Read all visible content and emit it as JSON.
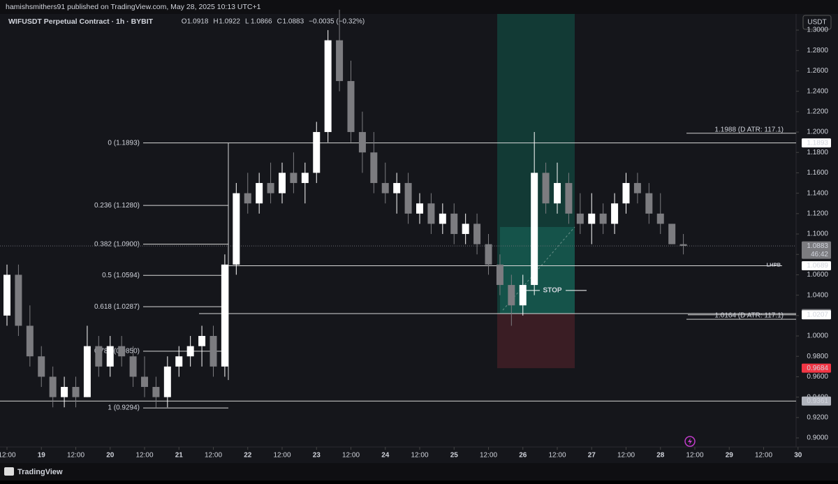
{
  "header": "hamishsmithers91 published on TradingView.com, May 28, 2025 10:13 UTC+1",
  "footer": "TradingView",
  "currency_button": "USDT",
  "chart_data": {
    "type": "candlestick",
    "title": "WIFUSDT Perpetual Contract · 1h · BYBIT",
    "ohlc_labels": [
      "O",
      "H",
      "L",
      "C"
    ],
    "ohlc_values": [
      1.0918,
      1.0922,
      1.0866,
      1.0883
    ],
    "change": "−0.0035 (−0.32%)",
    "up_color": "#ffffff",
    "down_color": "#7c7c80",
    "open": [
      1.02,
      1.06,
      1.01,
      0.98,
      0.96,
      0.94,
      0.95,
      0.94,
      0.99,
      0.97,
      0.99,
      0.98,
      0.96,
      0.95,
      0.94,
      0.97,
      0.98,
      0.99,
      1.0,
      0.97,
      1.07,
      1.14,
      1.13,
      1.15,
      1.14,
      1.16,
      1.15,
      1.16,
      1.2,
      1.29,
      1.25,
      1.2,
      1.18,
      1.15,
      1.14,
      1.15,
      1.12,
      1.13,
      1.11,
      1.12,
      1.1,
      1.11,
      1.09,
      1.07,
      1.05,
      1.03,
      1.05,
      1.16,
      1.13,
      1.15,
      1.12,
      1.11,
      1.12,
      1.11,
      1.13,
      1.15,
      1.14,
      1.12,
      1.11,
      1.09
    ],
    "high": [
      1.07,
      1.07,
      1.03,
      0.99,
      0.97,
      0.96,
      0.96,
      1.01,
      1.0,
      1.0,
      1.0,
      0.99,
      0.98,
      0.96,
      0.98,
      0.99,
      1.0,
      1.01,
      1.01,
      1.08,
      1.15,
      1.16,
      1.16,
      1.17,
      1.17,
      1.18,
      1.17,
      1.21,
      1.3,
      1.32,
      1.27,
      1.22,
      1.2,
      1.17,
      1.16,
      1.16,
      1.14,
      1.14,
      1.13,
      1.13,
      1.12,
      1.12,
      1.1,
      1.08,
      1.06,
      1.06,
      1.2,
      1.17,
      1.17,
      1.16,
      1.14,
      1.14,
      1.13,
      1.14,
      1.16,
      1.16,
      1.15,
      1.14,
      1.11,
      1.1
    ],
    "low": [
      1.01,
      1.0,
      0.97,
      0.95,
      0.93,
      0.93,
      0.93,
      0.94,
      0.96,
      0.96,
      0.97,
      0.95,
      0.94,
      0.93,
      0.93,
      0.96,
      0.97,
      0.97,
      0.96,
      0.96,
      1.06,
      1.12,
      1.12,
      1.13,
      1.13,
      1.14,
      1.13,
      1.15,
      1.19,
      1.24,
      1.19,
      1.16,
      1.14,
      1.13,
      1.12,
      1.11,
      1.11,
      1.1,
      1.1,
      1.09,
      1.09,
      1.08,
      1.06,
      1.04,
      1.01,
      1.02,
      1.04,
      1.12,
      1.12,
      1.11,
      1.1,
      1.09,
      1.1,
      1.1,
      1.12,
      1.13,
      1.11,
      1.1,
      1.09,
      1.08
    ],
    "close": [
      1.06,
      1.01,
      0.98,
      0.96,
      0.94,
      0.95,
      0.94,
      0.99,
      0.97,
      0.99,
      0.98,
      0.96,
      0.95,
      0.94,
      0.97,
      0.98,
      0.99,
      1.0,
      0.97,
      1.07,
      1.14,
      1.13,
      1.15,
      1.14,
      1.16,
      1.15,
      1.16,
      1.2,
      1.29,
      1.25,
      1.2,
      1.18,
      1.15,
      1.14,
      1.15,
      1.12,
      1.13,
      1.11,
      1.12,
      1.1,
      1.11,
      1.09,
      1.07,
      1.05,
      1.03,
      1.05,
      1.16,
      1.13,
      1.15,
      1.12,
      1.11,
      1.12,
      1.11,
      1.13,
      1.15,
      1.14,
      1.12,
      1.11,
      1.09,
      1.0883
    ],
    "xticks": [
      "12:00",
      "19",
      "12:00",
      "20",
      "12:00",
      "21",
      "12:00",
      "22",
      "12:00",
      "23",
      "12:00",
      "24",
      "12:00",
      "25",
      "12:00",
      "26",
      "12:00",
      "27",
      "12:00",
      "28",
      "12:00",
      "29",
      "12:00",
      "30"
    ],
    "ylim": [
      0.8911,
      1.3158
    ],
    "yticks": [
      {
        "value": 0.9,
        "label": "0.9000"
      },
      {
        "value": 0.92,
        "label": "0.9200"
      },
      {
        "value": 0.94,
        "label": "0.9400"
      },
      {
        "value": 0.96,
        "label": "0.9600"
      },
      {
        "value": 0.98,
        "label": "0.9800"
      },
      {
        "value": 1.0,
        "label": "1.0000"
      },
      {
        "value": 1.02,
        "label": "1.0200"
      },
      {
        "value": 1.04,
        "label": "1.0400"
      },
      {
        "value": 1.06,
        "label": "1.0600"
      },
      {
        "value": 1.08,
        "label": "1.0800"
      },
      {
        "value": 1.1,
        "label": "1.1000"
      },
      {
        "value": 1.12,
        "label": "1.1200"
      },
      {
        "value": 1.14,
        "label": "1.1400"
      },
      {
        "value": 1.16,
        "label": "1.1600"
      },
      {
        "value": 1.18,
        "label": "1.1800"
      },
      {
        "value": 1.2,
        "label": "1.2000"
      },
      {
        "value": 1.22,
        "label": "1.2200"
      },
      {
        "value": 1.24,
        "label": "1.2400"
      },
      {
        "value": 1.26,
        "label": "1.2600"
      },
      {
        "value": 1.28,
        "label": "1.2800"
      },
      {
        "value": 1.3,
        "label": "1.3000"
      }
    ],
    "fib": [
      {
        "label": "0 (1.1893)",
        "value": 1.1893
      },
      {
        "label": "0.236 (1.1280)",
        "value": 1.128
      },
      {
        "label": "0.382 (1.0900)",
        "value": 1.09
      },
      {
        "label": "0.5 (1.0594)",
        "value": 1.0594
      },
      {
        "label": "0.618 (1.0287)",
        "value": 1.0287
      },
      {
        "label": "0.786 (0.9850)",
        "value": 0.985
      },
      {
        "label": "1 (0.9294)",
        "value": 0.9294
      }
    ],
    "price_tags": [
      {
        "value": 1.1893,
        "color": "#ffffff"
      },
      {
        "value": 1.0883,
        "color": "#7c7c80",
        "countdown": "46:42"
      },
      {
        "value": 1.0689,
        "color": "#ffffff"
      },
      {
        "value": 1.0219,
        "color": "#7c7c80"
      },
      {
        "value": 1.0207,
        "color": "#ffffff"
      },
      {
        "value": 0.9684,
        "color": "#f23645"
      },
      {
        "value": 0.9361,
        "color": "#b2b5be"
      }
    ],
    "level_label": {
      "text": "LHPB",
      "value": 1.0689
    },
    "atr": [
      {
        "label": "1.1988 (D ATR: 117.1)",
        "value": 1.1988
      },
      {
        "label": "1.0164 (D ATR: 117.1)",
        "value": 1.0164
      }
    ],
    "position": {
      "entry": 1.0219,
      "stop": 0.9684
    },
    "stop_label": {
      "text": "STOP",
      "value": 1.0446
    }
  }
}
